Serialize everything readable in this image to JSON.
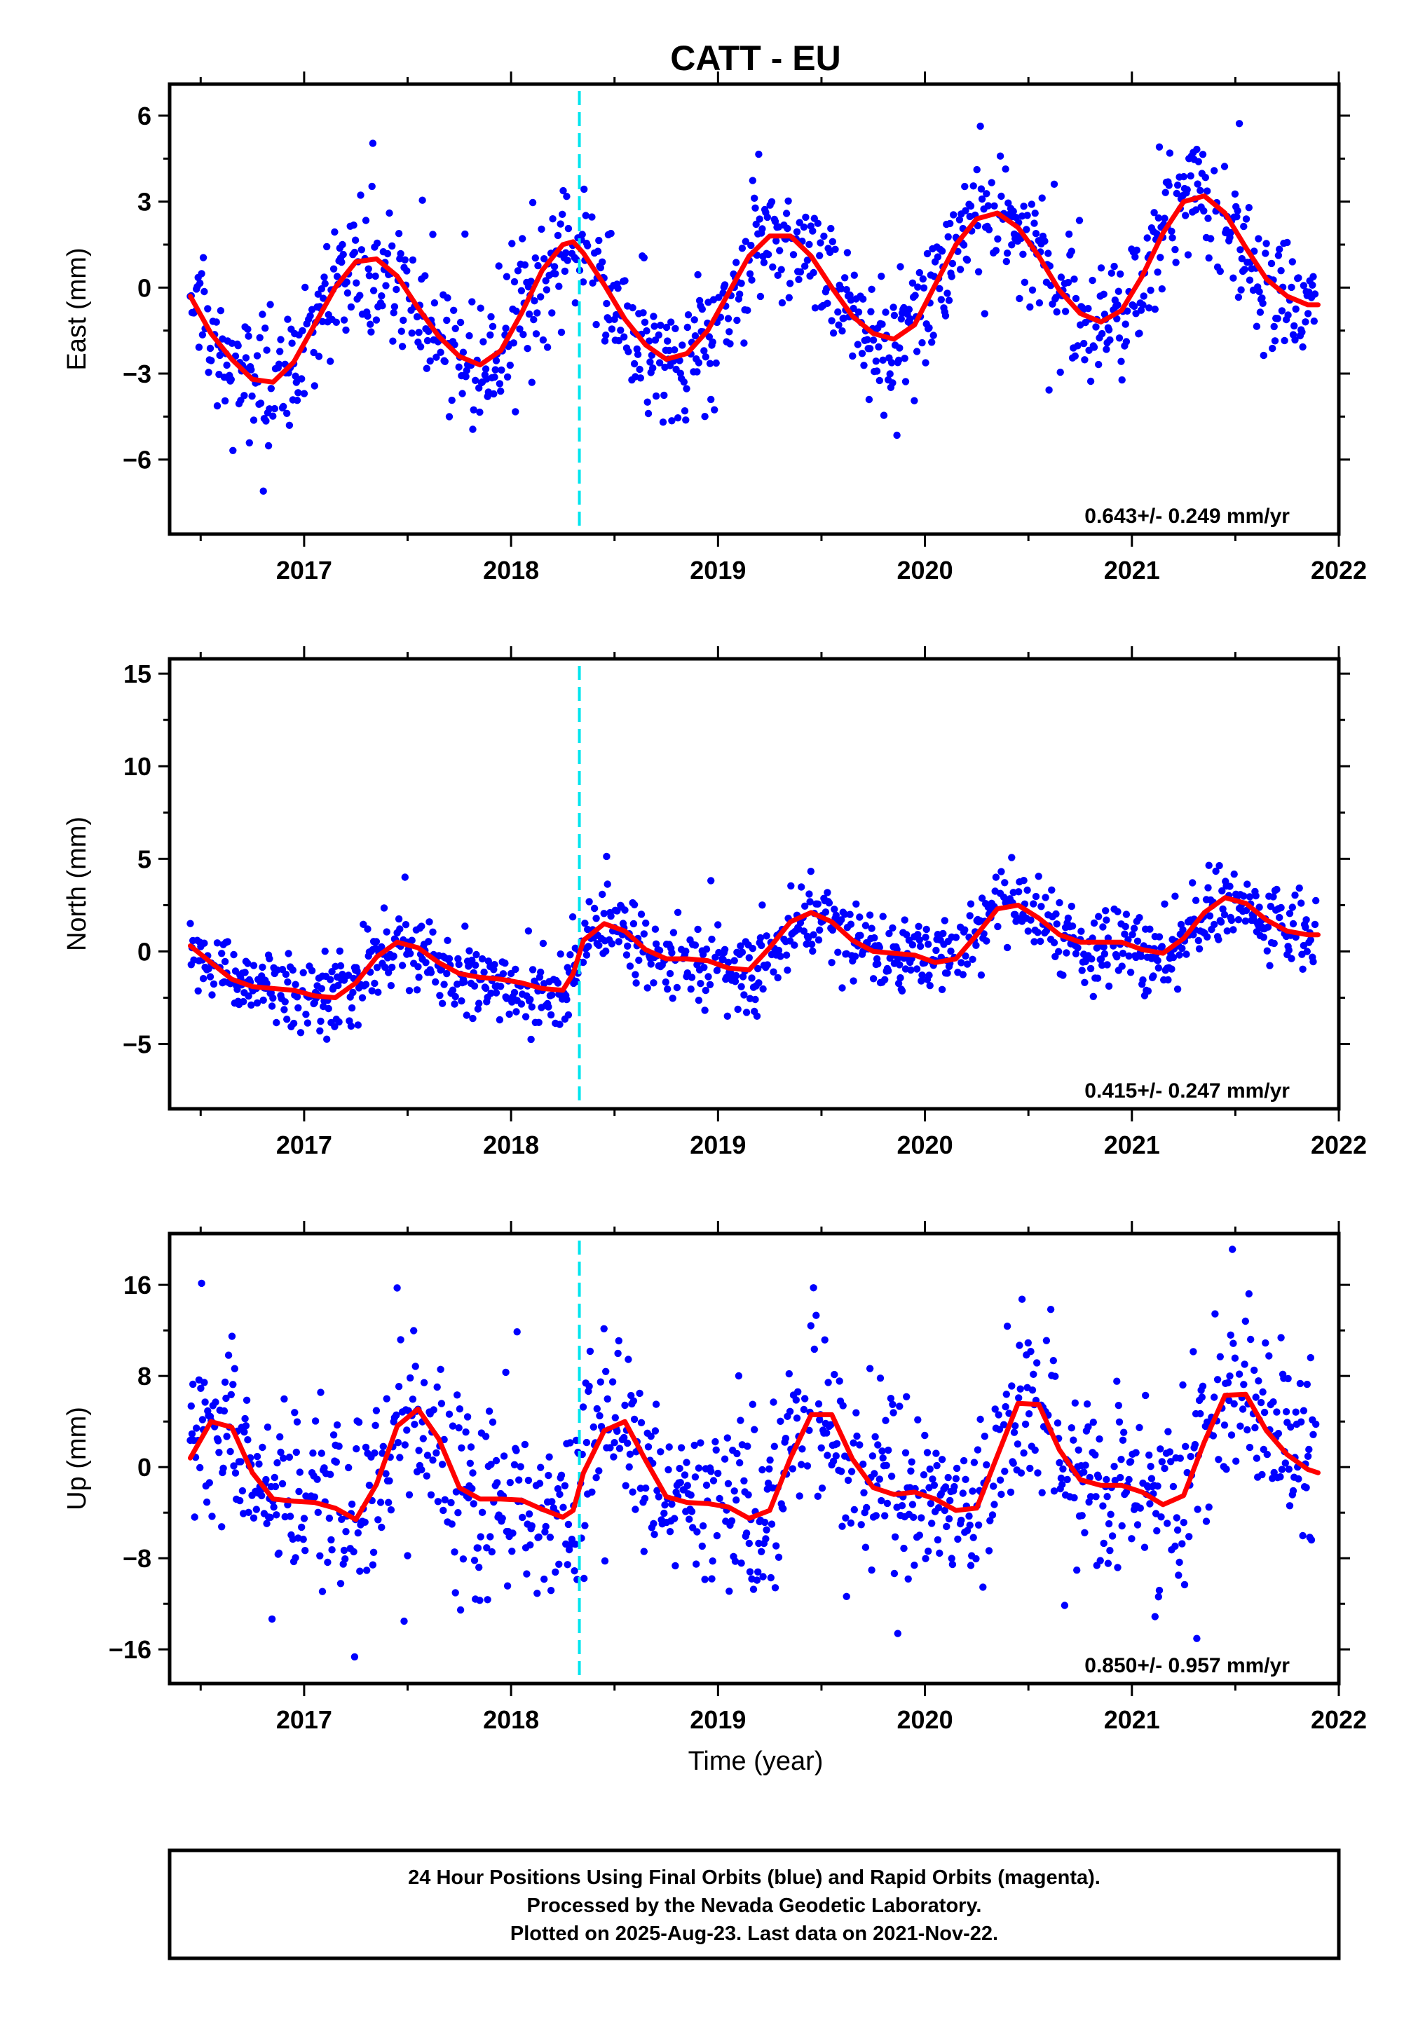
{
  "figure": {
    "title": "CATT - EU",
    "xlabel": "Time (year)",
    "footer": [
      "24 Hour Positions Using Final Orbits (blue) and Rapid Orbits (magenta).",
      "Processed by the Nevada Geodetic Laboratory.",
      "Plotted on 2025-Aug-23. Last data on 2021-Nov-22."
    ],
    "colors": {
      "points": "#0000ff",
      "model": "#ff0000",
      "event": "#00e5ee",
      "frame": "#000000"
    }
  },
  "chart_data": [
    {
      "type": "scatter",
      "ylabel": "East (mm)",
      "rate_label": "0.643+/- 0.249 mm/yr",
      "xlim": [
        2016.35,
        2022.0
      ],
      "ylim": [
        -8.6,
        7.1
      ],
      "xticks": [
        "2017",
        "2018",
        "2019",
        "2020",
        "2021",
        "2022"
      ],
      "yticks": [
        "6",
        "3",
        "0",
        "-3",
        "-6"
      ],
      "event_line_x": 2018.33,
      "series": [
        {
          "kind": "fit",
          "x": [
            2016.45,
            2016.55,
            2016.65,
            2016.75,
            2016.85,
            2016.95,
            2017.05,
            2017.15,
            2017.25,
            2017.35,
            2017.45,
            2017.55,
            2017.65,
            2017.75,
            2017.85,
            2017.95,
            2018.05,
            2018.15,
            2018.25,
            2018.3,
            2018.35,
            2018.45,
            2018.55,
            2018.65,
            2018.75,
            2018.85,
            2018.95,
            2019.05,
            2019.15,
            2019.25,
            2019.35,
            2019.45,
            2019.55,
            2019.65,
            2019.75,
            2019.85,
            2019.95,
            2020.05,
            2020.15,
            2020.25,
            2020.35,
            2020.45,
            2020.55,
            2020.65,
            2020.75,
            2020.85,
            2020.95,
            2021.05,
            2021.15,
            2021.25,
            2021.35,
            2021.45,
            2021.55,
            2021.65,
            2021.75,
            2021.85,
            2021.9
          ],
          "y": [
            -0.3,
            -1.6,
            -2.5,
            -3.2,
            -3.3,
            -2.6,
            -1.3,
            0.0,
            0.9,
            1.0,
            0.4,
            -0.7,
            -1.7,
            -2.4,
            -2.7,
            -2.2,
            -0.9,
            0.6,
            1.5,
            1.6,
            1.2,
            0.1,
            -1.1,
            -2.0,
            -2.5,
            -2.3,
            -1.5,
            -0.2,
            1.1,
            1.8,
            1.8,
            1.1,
            0.0,
            -1.0,
            -1.6,
            -1.8,
            -1.3,
            0.1,
            1.5,
            2.4,
            2.6,
            2.1,
            1.1,
            -0.1,
            -0.9,
            -1.2,
            -0.8,
            0.4,
            1.9,
            3.0,
            3.2,
            2.6,
            1.4,
            0.3,
            -0.3,
            -0.6,
            -0.6
          ]
        }
      ]
    },
    {
      "type": "scatter",
      "ylabel": "North (mm)",
      "rate_label": "0.415+/- 0.247 mm/yr",
      "xlim": [
        2016.35,
        2022.0
      ],
      "ylim": [
        -8.5,
        15.8
      ],
      "xticks": [
        "2017",
        "2018",
        "2019",
        "2020",
        "2021",
        "2022"
      ],
      "yticks": [
        "15",
        "10",
        "5",
        "0",
        "-5"
      ],
      "event_line_x": 2018.33,
      "series": [
        {
          "kind": "fit",
          "x": [
            2016.45,
            2016.55,
            2016.65,
            2016.75,
            2016.85,
            2016.95,
            2017.05,
            2017.15,
            2017.25,
            2017.35,
            2017.45,
            2017.55,
            2017.65,
            2017.75,
            2017.85,
            2017.95,
            2018.05,
            2018.15,
            2018.25,
            2018.3,
            2018.35,
            2018.45,
            2018.55,
            2018.65,
            2018.75,
            2018.85,
            2018.95,
            2019.05,
            2019.15,
            2019.25,
            2019.35,
            2019.45,
            2019.55,
            2019.65,
            2019.75,
            2019.85,
            2019.95,
            2020.05,
            2020.15,
            2020.25,
            2020.35,
            2020.45,
            2020.55,
            2020.65,
            2020.75,
            2020.85,
            2020.95,
            2021.05,
            2021.15,
            2021.25,
            2021.35,
            2021.45,
            2021.55,
            2021.65,
            2021.75,
            2021.85,
            2021.9
          ],
          "y": [
            0.3,
            -0.6,
            -1.5,
            -1.9,
            -2.0,
            -2.1,
            -2.4,
            -2.5,
            -1.7,
            -0.3,
            0.5,
            0.2,
            -0.6,
            -1.2,
            -1.4,
            -1.5,
            -1.7,
            -2.0,
            -2.1,
            -1.2,
            0.6,
            1.5,
            1.1,
            0.1,
            -0.4,
            -0.4,
            -0.5,
            -0.9,
            -1.0,
            0.2,
            1.6,
            2.1,
            1.6,
            0.6,
            0.0,
            -0.1,
            -0.2,
            -0.6,
            -0.4,
            0.9,
            2.3,
            2.5,
            1.8,
            0.9,
            0.5,
            0.5,
            0.5,
            0.1,
            -0.1,
            0.7,
            2.1,
            2.9,
            2.6,
            1.7,
            1.1,
            0.9,
            0.9
          ]
        }
      ]
    },
    {
      "type": "scatter",
      "ylabel": "Up (mm)",
      "rate_label": "0.850+/- 0.957 mm/yr",
      "xlim": [
        2016.35,
        2022.0
      ],
      "ylim": [
        -19.0,
        20.5
      ],
      "xticks": [
        "2017",
        "2018",
        "2019",
        "2020",
        "2021",
        "2022"
      ],
      "yticks": [
        "16",
        "8",
        "0",
        "-8",
        "-16"
      ],
      "event_line_x": 2018.33,
      "series": [
        {
          "kind": "fit",
          "x": [
            2016.45,
            2016.55,
            2016.65,
            2016.75,
            2016.85,
            2016.95,
            2017.05,
            2017.15,
            2017.25,
            2017.35,
            2017.45,
            2017.55,
            2017.65,
            2017.75,
            2017.85,
            2017.95,
            2018.05,
            2018.15,
            2018.25,
            2018.3,
            2018.35,
            2018.45,
            2018.55,
            2018.65,
            2018.75,
            2018.85,
            2018.95,
            2019.05,
            2019.15,
            2019.25,
            2019.35,
            2019.45,
            2019.55,
            2019.65,
            2019.75,
            2019.85,
            2019.95,
            2020.05,
            2020.15,
            2020.25,
            2020.35,
            2020.45,
            2020.55,
            2020.65,
            2020.75,
            2020.85,
            2020.95,
            2021.05,
            2021.15,
            2021.25,
            2021.35,
            2021.45,
            2021.55,
            2021.65,
            2021.75,
            2021.85,
            2021.9
          ],
          "y": [
            0.8,
            4.0,
            3.5,
            -0.5,
            -2.8,
            -3.0,
            -3.1,
            -3.6,
            -4.6,
            -1.5,
            3.6,
            5.1,
            2.5,
            -1.8,
            -2.8,
            -2.8,
            -2.9,
            -3.7,
            -4.4,
            -3.8,
            -0.5,
            3.2,
            4.0,
            0.6,
            -2.6,
            -3.1,
            -3.2,
            -3.5,
            -4.5,
            -3.8,
            0.8,
            4.6,
            4.6,
            0.7,
            -1.8,
            -2.4,
            -2.2,
            -2.8,
            -3.8,
            -3.6,
            1.0,
            5.6,
            5.5,
            1.5,
            -1.1,
            -1.6,
            -1.6,
            -2.2,
            -3.3,
            -2.5,
            2.2,
            6.3,
            6.4,
            3.2,
            1.1,
            -0.2,
            -0.5
          ]
        }
      ]
    }
  ]
}
